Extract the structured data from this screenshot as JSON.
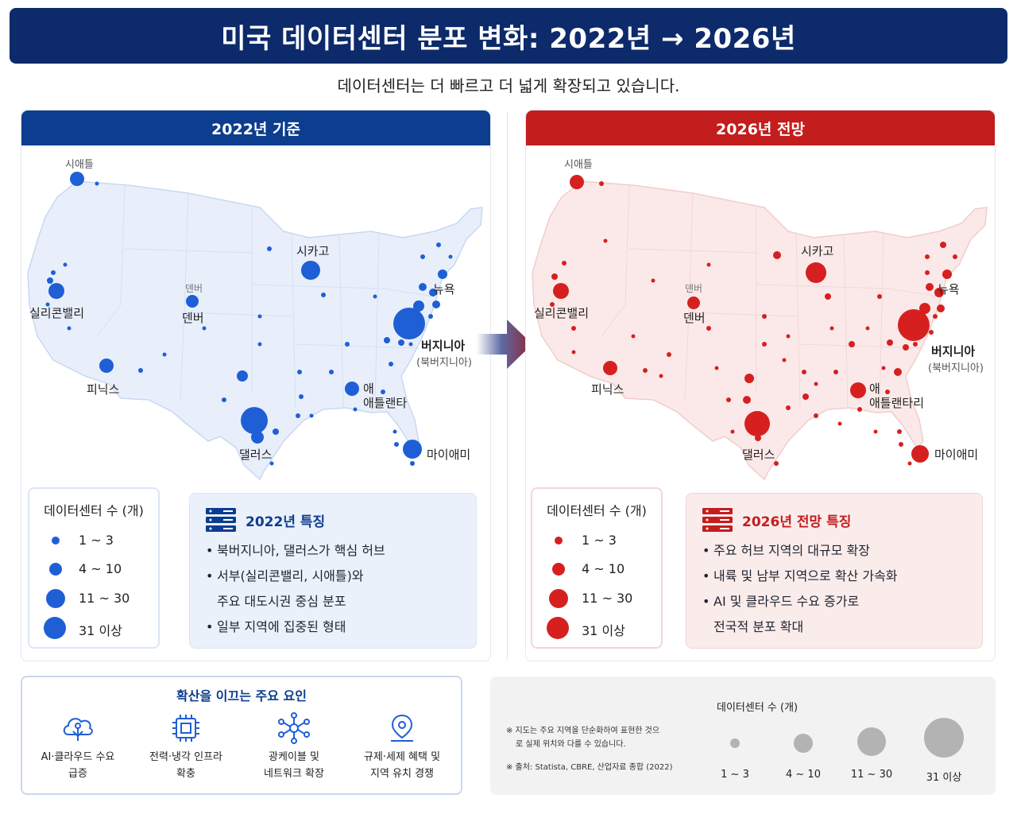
{
  "title": "미국 데이터센터 분포 변화: 2022년 → 2026년",
  "subtitle": "데이터센터는 더 빠르고 더 넓게 확장되고 있습니다.",
  "colors": {
    "navy": "#0d2a6b",
    "blue": "#1f5fd6",
    "red": "#d62020",
    "map_blue": "#e6eefb",
    "map_red": "#fbe8e8"
  },
  "panel_2022": {
    "header": "2022년 기준",
    "cities": {
      "seattle": "시애틀",
      "silicon_valley": "실리콘밸리",
      "denver_ghost": "덴버",
      "denver": "덴버",
      "phoenix": "피닉스",
      "chicago": "시카고",
      "new_york": "뉴욕",
      "virginia": "버지니아",
      "virginia_sub": "(북버지니아)",
      "atlanta_ghost": "애",
      "atlanta": "애틀랜타",
      "dallas": "댈러스",
      "miami": "마이애미"
    },
    "legend": {
      "title": "데이터센터 수 (개)",
      "items": [
        "1 ~ 3",
        "4 ~ 10",
        "11 ~ 30",
        "31 이상"
      ]
    },
    "features": {
      "icon": "server-icon",
      "title": "2022년 특징",
      "lines": [
        "북버지니아, 댈러스가 핵심 허브",
        "서부(실리콘밸리, 시애틀)와",
        "주요 대도시권 중심 분포",
        "일부 지역에 집중된 형태"
      ]
    }
  },
  "panel_2026": {
    "header": "2026년 전망",
    "cities": {
      "seattle": "시애틀",
      "silicon_valley": "실리콘밸리",
      "denver_ghost": "덴버",
      "denver": "덴버",
      "phoenix": "피닉스",
      "chicago": "시카고",
      "new_york": "뉴욕",
      "virginia": "버지니아",
      "virginia_sub": "(북버지니아)",
      "atlanta_ghost": "애",
      "atlanta": "애틀랜타리",
      "dallas": "댈러스",
      "miami": "마이애미"
    },
    "legend": {
      "title": "데이터센터 수 (개)",
      "items": [
        "1 ~ 3",
        "4 ~ 10",
        "11 ~ 30",
        "31 이상"
      ]
    },
    "features": {
      "icon": "server-icon",
      "title": "2026년 전망 특징",
      "lines": [
        "주요 허브 지역의 대규모 확장",
        "내륙 및 남부 지역으로 확산 가속화",
        "AI 및 클라우드 수요 증가로",
        "전국적 분포 확대"
      ]
    }
  },
  "factors": {
    "title": "확산을 이끄는 주요 요인",
    "items": [
      {
        "icon": "ai-cloud-icon",
        "line1": "AI·클라우드 수요",
        "line2": "급증"
      },
      {
        "icon": "chip-icon",
        "line1": "전력·냉각 인프라",
        "line2": "확충"
      },
      {
        "icon": "network-icon",
        "line1": "광케이블 및",
        "line2": "네트워크 확장"
      },
      {
        "icon": "location-pin-icon",
        "line1": "규제·세제 혜택 및",
        "line2": "지역 유치 경쟁"
      }
    ]
  },
  "info": {
    "note1_line1": "※ 지도는 주요 지역을 단순화하여 표현한 것으",
    "note1_line2": "로 실제 위치와 다를 수 있습니다.",
    "note2": "※ 출처: Statista, CBRE, 산업자료 종합 (2022)",
    "legend_title": "데이터센터 수 (개)",
    "legend_items": [
      "1 ~ 3",
      "4 ~ 10",
      "11 ~ 30",
      "31 이상"
    ]
  }
}
